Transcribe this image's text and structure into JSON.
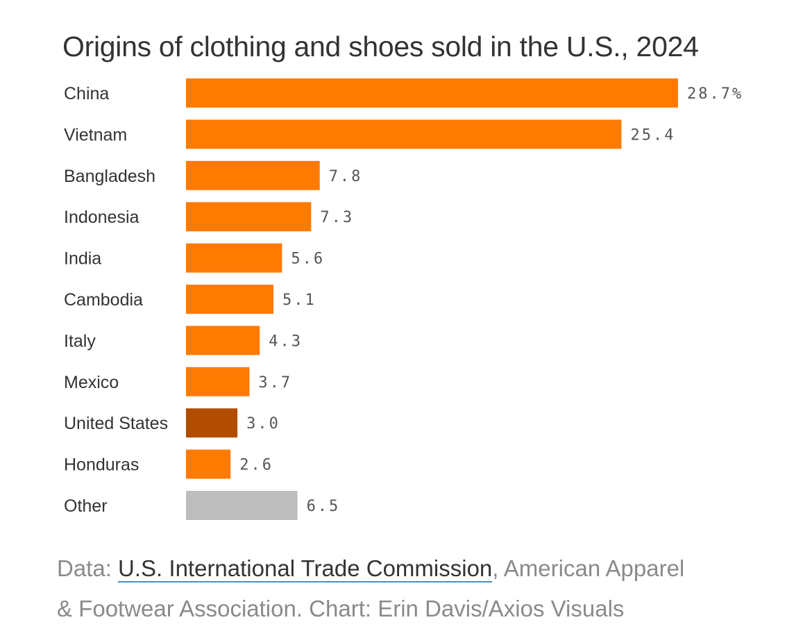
{
  "chart_data": {
    "type": "bar",
    "orientation": "horizontal",
    "title": "Origins of clothing and shoes sold in the U.S., 2024",
    "categories": [
      "China",
      "Vietnam",
      "Bangladesh",
      "Indonesia",
      "India",
      "Cambodia",
      "Italy",
      "Mexico",
      "United States",
      "Honduras",
      "Other"
    ],
    "values": [
      28.7,
      25.4,
      7.8,
      7.3,
      5.6,
      5.1,
      4.3,
      3.7,
      3.0,
      2.6,
      6.5
    ],
    "value_labels": [
      "28.7%",
      "25.4",
      "7.8",
      "7.3",
      "5.6",
      "5.1",
      "4.3",
      "3.7",
      "3.0",
      "2.6",
      "6.5"
    ],
    "colors": [
      "#ff7a00",
      "#ff7a00",
      "#ff7a00",
      "#ff7a00",
      "#ff7a00",
      "#ff7a00",
      "#ff7a00",
      "#ff7a00",
      "#b24c00",
      "#ff7a00",
      "#bdbdbd"
    ],
    "xlim": [
      0,
      28.7
    ],
    "grid": false,
    "legend": "none"
  },
  "source": {
    "prefix": "Data: ",
    "link_text": "U.S. International Trade Commission",
    "rest": ", American Apparel",
    "line2": "& Footwear Association. Chart: Erin Davis/Axios Visuals"
  }
}
